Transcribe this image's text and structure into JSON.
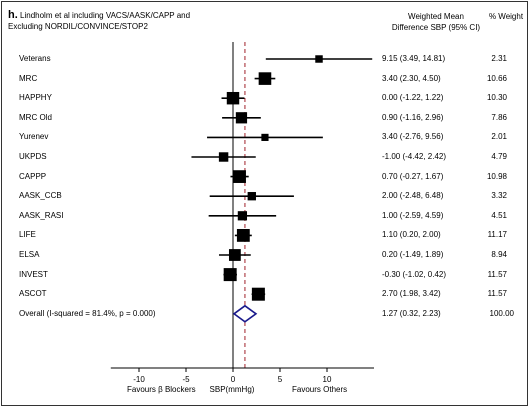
{
  "panel": {
    "letter": "h.",
    "title_line1": "Lindholm et al including VACS/AASK/CAPP and",
    "title_line2": "Excluding NORDIL/CONVINCE/STOP2"
  },
  "columns": {
    "wmd_line1": "Weighted Mean",
    "wmd_line2": "Difference SBP  (95% CI)",
    "weight": "% Weight"
  },
  "colors": {
    "marker": "#000000",
    "ci": "#000000",
    "overall_diamond": "#1a1a8c",
    "null_line": "#000000",
    "pooled_line": "#a0202a"
  },
  "chart_data": {
    "type": "forest",
    "xlim": [
      -13,
      15
    ],
    "x_ticks": [
      -10,
      -5,
      0,
      5,
      10
    ],
    "x_label_left": "Favours β Blockers",
    "x_label_center": "SBP(mmHg)",
    "x_label_right": "Favours Others",
    "studies": [
      {
        "name": "Veterans",
        "estimate": 9.15,
        "lower": 3.49,
        "upper": 14.81,
        "weight": 2.31,
        "ci_text": "9.15 (3.49, 14.81)",
        "weight_text": "2.31"
      },
      {
        "name": "MRC",
        "estimate": 3.4,
        "lower": 2.3,
        "upper": 4.5,
        "weight": 10.66,
        "ci_text": "3.40 (2.30, 4.50)",
        "weight_text": "10.66"
      },
      {
        "name": "HAPPHY",
        "estimate": 0.0,
        "lower": -1.22,
        "upper": 1.22,
        "weight": 10.3,
        "ci_text": "0.00 (-1.22, 1.22)",
        "weight_text": "10.30"
      },
      {
        "name": "MRC Old",
        "estimate": 0.9,
        "lower": -1.16,
        "upper": 2.96,
        "weight": 7.86,
        "ci_text": "0.90 (-1.16, 2.96)",
        "weight_text": "7.86"
      },
      {
        "name": "Yurenev",
        "estimate": 3.4,
        "lower": -2.76,
        "upper": 9.56,
        "weight": 2.01,
        "ci_text": "3.40 (-2.76, 9.56)",
        "weight_text": "2.01"
      },
      {
        "name": "UKPDS",
        "estimate": -1.0,
        "lower": -4.42,
        "upper": 2.42,
        "weight": 4.79,
        "ci_text": "-1.00 (-4.42, 2.42)",
        "weight_text": "4.79"
      },
      {
        "name": "CAPPP",
        "estimate": 0.7,
        "lower": -0.27,
        "upper": 1.67,
        "weight": 10.98,
        "ci_text": "0.70 (-0.27, 1.67)",
        "weight_text": "10.98"
      },
      {
        "name": "AASK_CCB",
        "estimate": 2.0,
        "lower": -2.48,
        "upper": 6.48,
        "weight": 3.32,
        "ci_text": "2.00 (-2.48, 6.48)",
        "weight_text": "3.32"
      },
      {
        "name": "AASK_RASI",
        "estimate": 1.0,
        "lower": -2.59,
        "upper": 4.59,
        "weight": 4.51,
        "ci_text": "1.00 (-2.59, 4.59)",
        "weight_text": "4.51"
      },
      {
        "name": "LIFE",
        "estimate": 1.1,
        "lower": 0.2,
        "upper": 2.0,
        "weight": 11.17,
        "ci_text": "1.10 (0.20, 2.00)",
        "weight_text": "11.17"
      },
      {
        "name": "ELSA",
        "estimate": 0.2,
        "lower": -1.49,
        "upper": 1.89,
        "weight": 8.94,
        "ci_text": "0.20 (-1.49, 1.89)",
        "weight_text": "8.94"
      },
      {
        "name": "INVEST",
        "estimate": -0.3,
        "lower": -1.02,
        "upper": 0.42,
        "weight": 11.57,
        "ci_text": "-0.30 (-1.02, 0.42)",
        "weight_text": "11.57"
      },
      {
        "name": "ASCOT",
        "estimate": 2.7,
        "lower": 1.98,
        "upper": 3.42,
        "weight": 11.57,
        "ci_text": "2.70 (1.98, 3.42)",
        "weight_text": "11.57"
      }
    ],
    "overall": {
      "name": "Overall  (I-squared = 81.4%, p = 0.000)",
      "estimate": 1.27,
      "lower": 0.32,
      "upper": 2.23,
      "weight": 100.0,
      "ci_text": "1.27 (0.32, 2.23)",
      "weight_text": "100.00"
    }
  }
}
